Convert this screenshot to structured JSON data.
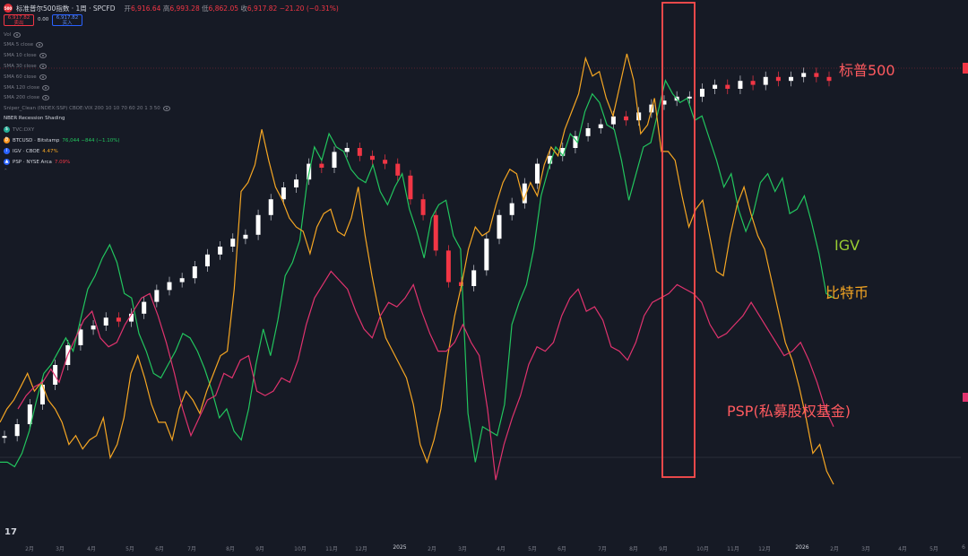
{
  "header": {
    "logo": "500",
    "title": "标准普尔500指数 · 1周 · SPCFD",
    "o_label": "开",
    "o_value": "6,916.64",
    "h_label": "高",
    "h_value": "6,993.28",
    "l_label": "低",
    "l_value": "6,862.05",
    "c_label": "收",
    "c_value": "6,917.82",
    "change": "−21.20 (−0.31%)"
  },
  "sell": {
    "price": "6,917.82",
    "label": "卖出"
  },
  "spread": "0.00",
  "buy": {
    "price": "6,917.82",
    "label": "买入"
  },
  "indicators": [
    "Vol",
    "SMA 5 close",
    "SMA 10 close",
    "SMA 30 close",
    "SMA 60 close",
    "SMA 120 close",
    "SMA 200 close",
    "Sniper_Clean (INDEX:SSP) CBOE:VIX 200 10 10 70 60 20 1 3 50",
    "NBER Recession Shading"
  ],
  "compare": [
    {
      "icon": "$",
      "name": "TVC:DXY",
      "value": "",
      "color": "#22ab94"
    },
    {
      "icon": "₿",
      "name": "BTCUSD · Bitstamp",
      "value": "76,044 −844 (−1.10%)",
      "color": "#f7931a"
    },
    {
      "icon": "i",
      "name": "IGV · CBOE",
      "value": "4.47%",
      "color": "#2962ff"
    },
    {
      "icon": "▲",
      "name": "PSP · NYSE Arca",
      "value": "7.09%",
      "color": "#2962ff"
    }
  ],
  "tv_logo": "17",
  "annotations": {
    "sp500": "标普500",
    "igv": "IGV",
    "btc": "比特币",
    "psp": "PSP(私募股权基金)"
  },
  "colors": {
    "background": "#161a25",
    "up": "#ffffff",
    "down": "#f23645",
    "igv": "#22c55e",
    "btc": "#f5a623",
    "psp": "#e0336e",
    "highlight": "#ff4d4f"
  },
  "chart_data": {
    "type": "line",
    "x_ticks": [
      "2月",
      "3月",
      "4月",
      "5月",
      "6月",
      "7月",
      "8月",
      "9月",
      "10月",
      "11月",
      "12月",
      "2025",
      "2月",
      "3月",
      "4月",
      "5月",
      "6月",
      "7月",
      "8月",
      "9月",
      "10月",
      "11月",
      "12月",
      "2026",
      "2月",
      "3月",
      "4月",
      "5月",
      "6"
    ],
    "series": [
      {
        "name": "IGV",
        "values": [
          0.08,
          0.08,
          0.07,
          0.1,
          0.15,
          0.22,
          0.28,
          0.3,
          0.33,
          0.36,
          0.33,
          0.4,
          0.47,
          0.5,
          0.54,
          0.57,
          0.53,
          0.46,
          0.45,
          0.37,
          0.33,
          0.28,
          0.27,
          0.3,
          0.33,
          0.37,
          0.36,
          0.33,
          0.29,
          0.24,
          0.18,
          0.2,
          0.15,
          0.13,
          0.2,
          0.3,
          0.38,
          0.32,
          0.4,
          0.5,
          0.53,
          0.58,
          0.71,
          0.79,
          0.76,
          0.82,
          0.79,
          0.78,
          0.74,
          0.72,
          0.71,
          0.75,
          0.69,
          0.66,
          0.7,
          0.73,
          0.65,
          0.6,
          0.54,
          0.63,
          0.66,
          0.67,
          0.59,
          0.56,
          0.19,
          0.08,
          0.16,
          0.15,
          0.14,
          0.21,
          0.39,
          0.44,
          0.48,
          0.56,
          0.68,
          0.74,
          0.79,
          0.77,
          0.82,
          0.8,
          0.87,
          0.91,
          0.89,
          0.84,
          0.83,
          0.76,
          0.67,
          0.73,
          0.79,
          0.8,
          0.87,
          0.94,
          0.91,
          0.89,
          0.9,
          0.85,
          0.86,
          0.81,
          0.76,
          0.7,
          0.73,
          0.65,
          0.6,
          0.64,
          0.71,
          0.73,
          0.69,
          0.72,
          0.64,
          0.65,
          0.68,
          0.62,
          0.55,
          0.46,
          0.45
        ]
      },
      {
        "name": "比特币",
        "values": [
          0.17,
          0.2,
          0.22,
          0.25,
          0.28,
          0.24,
          0.26,
          0.22,
          0.2,
          0.17,
          0.12,
          0.14,
          0.11,
          0.13,
          0.14,
          0.18,
          0.09,
          0.12,
          0.18,
          0.28,
          0.32,
          0.27,
          0.21,
          0.17,
          0.17,
          0.13,
          0.2,
          0.24,
          0.22,
          0.19,
          0.24,
          0.28,
          0.32,
          0.33,
          0.47,
          0.69,
          0.71,
          0.75,
          0.83,
          0.76,
          0.7,
          0.67,
          0.63,
          0.61,
          0.6,
          0.55,
          0.61,
          0.64,
          0.65,
          0.6,
          0.59,
          0.63,
          0.7,
          0.59,
          0.5,
          0.42,
          0.36,
          0.33,
          0.3,
          0.27,
          0.21,
          0.12,
          0.08,
          0.13,
          0.2,
          0.32,
          0.41,
          0.48,
          0.56,
          0.61,
          0.59,
          0.6,
          0.66,
          0.71,
          0.74,
          0.73,
          0.67,
          0.71,
          0.68,
          0.75,
          0.79,
          0.77,
          0.83,
          0.87,
          0.91,
          0.99,
          0.95,
          0.96,
          0.9,
          0.86,
          0.93,
          1.0,
          0.94,
          0.82,
          0.84,
          0.9,
          0.78,
          0.78,
          0.76,
          0.68,
          0.61,
          0.65,
          0.67,
          0.59,
          0.51,
          0.5,
          0.59,
          0.66,
          0.7,
          0.64,
          0.59,
          0.56,
          0.49,
          0.42,
          0.35,
          0.31,
          0.25,
          0.18,
          0.1,
          0.12,
          0.06,
          0.03
        ]
      },
      {
        "name": "PSP",
        "values": [
          0.2,
          0.23,
          0.25,
          0.26,
          0.29,
          0.26,
          0.32,
          0.36,
          0.4,
          0.42,
          0.36,
          0.34,
          0.35,
          0.39,
          0.42,
          0.45,
          0.46,
          0.41,
          0.35,
          0.28,
          0.2,
          0.14,
          0.18,
          0.22,
          0.23,
          0.28,
          0.27,
          0.31,
          0.32,
          0.24,
          0.23,
          0.24,
          0.27,
          0.26,
          0.31,
          0.39,
          0.45,
          0.48,
          0.51,
          0.49,
          0.47,
          0.42,
          0.38,
          0.36,
          0.41,
          0.44,
          0.43,
          0.45,
          0.48,
          0.42,
          0.37,
          0.33,
          0.33,
          0.35,
          0.39,
          0.35,
          0.32,
          0.2,
          0.04,
          0.12,
          0.18,
          0.23,
          0.3,
          0.34,
          0.33,
          0.35,
          0.41,
          0.45,
          0.47,
          0.42,
          0.43,
          0.4,
          0.34,
          0.33,
          0.31,
          0.35,
          0.41,
          0.44,
          0.45,
          0.46,
          0.48,
          0.47,
          0.46,
          0.44,
          0.39,
          0.36,
          0.37,
          0.39,
          0.41,
          0.44,
          0.41,
          0.38,
          0.35,
          0.32,
          0.33,
          0.35,
          0.31,
          0.26,
          0.2,
          0.16
        ]
      },
      {
        "name": "标普500",
        "values": [
          0.02,
          0.05,
          0.1,
          0.15,
          0.2,
          0.25,
          0.29,
          0.3,
          0.32,
          0.31,
          0.33,
          0.36,
          0.39,
          0.41,
          0.42,
          0.45,
          0.48,
          0.5,
          0.52,
          0.53,
          0.58,
          0.62,
          0.65,
          0.67,
          0.71,
          0.7,
          0.74,
          0.75,
          0.73,
          0.72,
          0.71,
          0.68,
          0.62,
          0.58,
          0.49,
          0.41,
          0.4,
          0.44,
          0.52,
          0.58,
          0.61,
          0.66,
          0.71,
          0.73,
          0.75,
          0.78,
          0.8,
          0.81,
          0.83,
          0.82,
          0.84,
          0.86,
          0.87,
          0.88,
          0.88,
          0.9,
          0.91,
          0.9,
          0.92,
          0.91,
          0.93,
          0.92,
          0.93,
          0.94,
          0.93,
          0.92
        ]
      }
    ]
  }
}
